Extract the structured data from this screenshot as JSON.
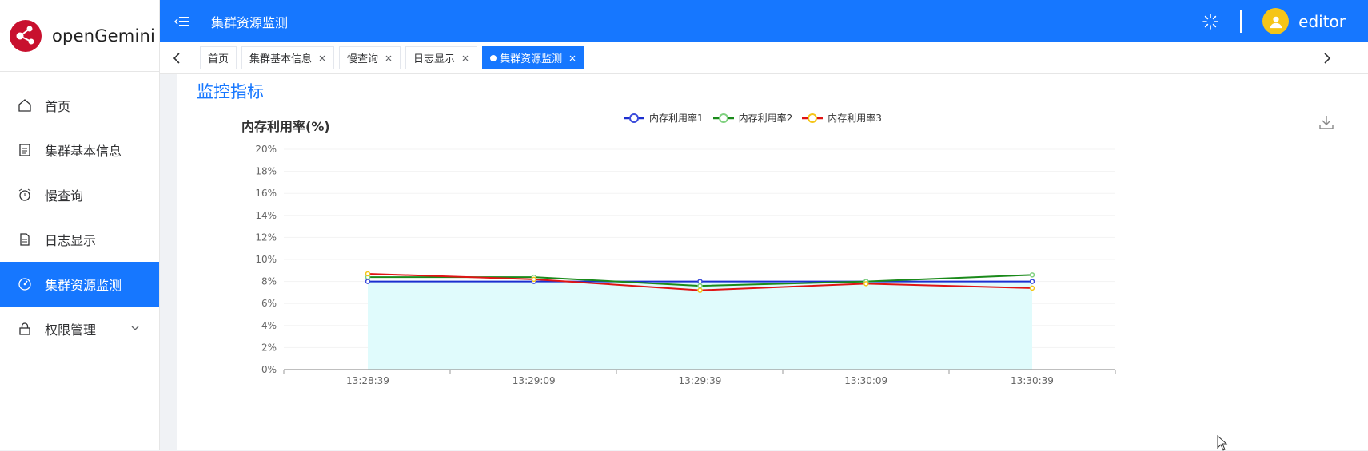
{
  "app": {
    "logo_text": "openGemini"
  },
  "sidebar": {
    "items": [
      {
        "label": "首页",
        "icon": "home-icon",
        "active": false
      },
      {
        "label": "集群基本信息",
        "icon": "document-icon",
        "active": false
      },
      {
        "label": "慢查询",
        "icon": "alarm-clock-icon",
        "active": false
      },
      {
        "label": "日志显示",
        "icon": "file-text-icon",
        "active": false
      },
      {
        "label": "集群资源监测",
        "icon": "gauge-icon",
        "active": true
      },
      {
        "label": "权限管理",
        "icon": "lock-icon",
        "active": false,
        "has_submenu": true
      }
    ]
  },
  "header": {
    "title": "集群资源监测",
    "username": "editor"
  },
  "tabs": [
    {
      "label": "首页",
      "closable": false,
      "active": false
    },
    {
      "label": "集群基本信息",
      "closable": true,
      "active": false
    },
    {
      "label": "慢查询",
      "closable": true,
      "active": false
    },
    {
      "label": "日志显示",
      "closable": true,
      "active": false
    },
    {
      "label": "集群资源监测",
      "closable": true,
      "active": true
    }
  ],
  "main": {
    "section_title": "监控指标"
  },
  "colors": {
    "primary": "#1677ff",
    "series1": "#1b2ecf",
    "series2": "#1a8a1a",
    "series3": "#e01414",
    "area": "#e0fbfc"
  },
  "chart_data": {
    "type": "line",
    "title": "内存利用率(%)",
    "x": [
      "13:28:39",
      "13:29:09",
      "13:29:39",
      "13:30:09",
      "13:30:39"
    ],
    "yticks": [
      "0%",
      "2%",
      "4%",
      "6%",
      "8%",
      "10%",
      "12%",
      "14%",
      "16%",
      "18%",
      "20%"
    ],
    "ylim": [
      0,
      20
    ],
    "grid": true,
    "legend_position": "top-center",
    "series": [
      {
        "name": "内存利用率1",
        "values": [
          8.0,
          8.0,
          8.0,
          8.0,
          8.0
        ],
        "color": "#1b2ecf",
        "marker": "#3b4bdb"
      },
      {
        "name": "内存利用率2",
        "values": [
          8.4,
          8.4,
          7.6,
          8.0,
          8.6
        ],
        "color": "#1a8a1a",
        "marker": "#7fd17f"
      },
      {
        "name": "内存利用率3",
        "values": [
          8.7,
          8.2,
          7.2,
          7.8,
          7.4
        ],
        "color": "#e01414",
        "marker": "#f5c518"
      }
    ]
  }
}
